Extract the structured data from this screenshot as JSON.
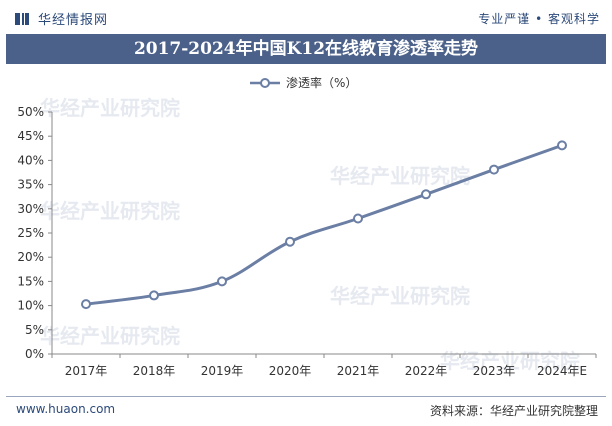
{
  "header": {
    "brand_name": "华经情报网",
    "tagline": "专业严谨 • 客观科学",
    "logo_icon": "book-icon"
  },
  "title": "2017-2024年中国K12在线教育渗透率走势",
  "legend": {
    "label": "渗透率（%）"
  },
  "footer": {
    "website": "www.huaon.com",
    "source": "资料来源：华经产业研究院整理"
  },
  "watermark": {
    "text": "华经产业研究院",
    "sub": "www.huaon.com"
  },
  "colors": {
    "line": "#6b7ea4",
    "title_bg": "#4c618a",
    "brand": "#2c4a7a"
  },
  "chart_data": {
    "type": "line",
    "categories": [
      "2017年",
      "2018年",
      "2019年",
      "2020年",
      "2021年",
      "2022年",
      "2023年",
      "2024年E"
    ],
    "series": [
      {
        "name": "渗透率（%）",
        "values": [
          10.3,
          12.1,
          15.0,
          23.2,
          28.0,
          33.0,
          38.1,
          43.1
        ]
      }
    ],
    "yticks": [
      "0%",
      "5%",
      "10%",
      "15%",
      "20%",
      "25%",
      "30%",
      "35%",
      "40%",
      "45%",
      "50%"
    ],
    "ylim": [
      0,
      50
    ],
    "grid": false,
    "legend_position": "top-center"
  }
}
